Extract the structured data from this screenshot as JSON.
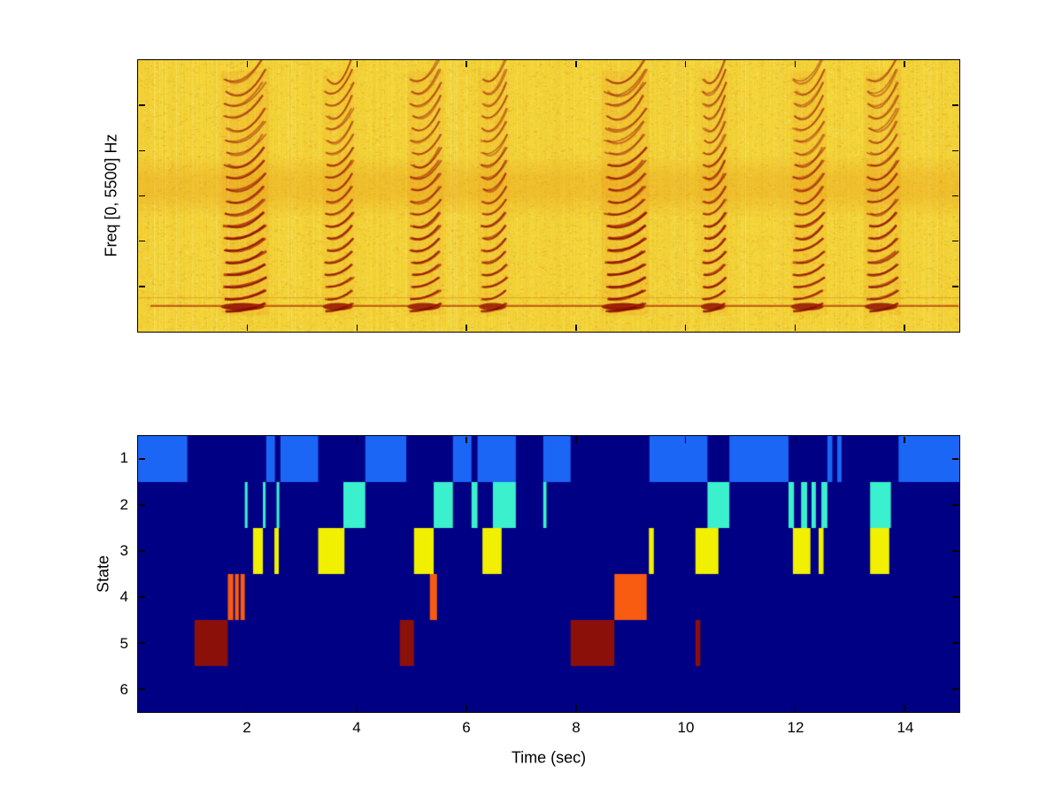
{
  "figure": {
    "background": "#ffffff",
    "axis_color": "#000000",
    "font_color": "#000000"
  },
  "chart_data": [
    {
      "type": "heatmap",
      "name": "spectrogram",
      "title": "",
      "xlabel": "",
      "ylabel": "Freq [0, 5500] Hz",
      "x_range_sec": [
        0,
        15
      ],
      "freq_range_hz": [
        0,
        5500
      ],
      "x_ticks": [
        2,
        4,
        6,
        8,
        10,
        12,
        14
      ],
      "colormap": "hot",
      "base_color": "#f5d93c",
      "band": {
        "y_frac": 0.4,
        "height_frac": 0.13,
        "color": "rgba(231,148,18,0.30)"
      },
      "noise_line": {
        "y_frac": 0.905,
        "color": "#af2300"
      },
      "call_events_sec": [
        [
          1.55,
          2.35
        ],
        [
          3.4,
          3.95
        ],
        [
          4.95,
          5.55
        ],
        [
          6.25,
          6.75
        ],
        [
          8.5,
          9.3
        ],
        [
          10.3,
          10.75
        ],
        [
          11.95,
          12.55
        ],
        [
          13.3,
          13.9
        ]
      ],
      "event_strengths": [
        1.0,
        0.75,
        0.8,
        0.7,
        1.0,
        0.8,
        0.75,
        0.8
      ]
    },
    {
      "type": "state-sequence",
      "name": "state-plot",
      "title": "",
      "xlabel": "Time (sec)",
      "ylabel": "State",
      "x_range_sec": [
        0,
        15
      ],
      "x_ticks": [
        2,
        4,
        6,
        8,
        10,
        12,
        14
      ],
      "y_ticks": [
        1,
        2,
        3,
        4,
        5,
        6
      ],
      "background_color": "#000084",
      "legend": "none",
      "grid": false,
      "series": [
        {
          "state": 1,
          "color": "#1b66f5",
          "segments": [
            [
              0,
              0.9
            ],
            [
              2.34,
              2.5
            ],
            [
              2.6,
              3.29
            ],
            [
              4.15,
              4.9
            ],
            [
              5.75,
              6.09
            ],
            [
              6.2,
              6.9
            ],
            [
              7.4,
              7.9
            ],
            [
              9.34,
              10.4
            ],
            [
              10.8,
              11.88
            ],
            [
              12.59,
              12.68
            ],
            [
              12.77,
              12.85
            ],
            [
              13.89,
              15.0
            ]
          ]
        },
        {
          "state": 2,
          "color": "#3bf0cc",
          "segments": [
            [
              1.95,
              2.0
            ],
            [
              2.28,
              2.33
            ],
            [
              2.53,
              2.58
            ],
            [
              3.75,
              4.15
            ],
            [
              5.4,
              5.75
            ],
            [
              6.09,
              6.2
            ],
            [
              6.48,
              6.9
            ],
            [
              7.4,
              7.46
            ],
            [
              10.4,
              10.8
            ],
            [
              11.88,
              11.98
            ],
            [
              12.11,
              12.22
            ],
            [
              12.3,
              12.38
            ],
            [
              12.48,
              12.59
            ],
            [
              13.37,
              13.75
            ]
          ]
        },
        {
          "state": 3,
          "color": "#f0f000",
          "segments": [
            [
              2.1,
              2.28
            ],
            [
              2.49,
              2.57
            ],
            [
              3.29,
              3.77
            ],
            [
              5.04,
              5.4
            ],
            [
              6.29,
              6.64
            ],
            [
              9.33,
              9.42
            ],
            [
              10.18,
              10.6
            ],
            [
              11.96,
              12.28
            ],
            [
              12.43,
              12.52
            ],
            [
              13.37,
              13.72
            ]
          ]
        },
        {
          "state": 4,
          "color": "#f85c10",
          "segments": [
            [
              1.64,
              1.74
            ],
            [
              1.77,
              1.84
            ],
            [
              1.87,
              1.95
            ],
            [
              5.33,
              5.46
            ],
            [
              8.7,
              9.29
            ]
          ]
        },
        {
          "state": 5,
          "color": "#8c100a",
          "segments": [
            [
              1.03,
              1.64
            ],
            [
              4.78,
              5.04
            ],
            [
              7.9,
              8.7
            ],
            [
              10.18,
              10.27
            ]
          ]
        },
        {
          "state": 6,
          "color": null,
          "segments": []
        }
      ]
    }
  ]
}
